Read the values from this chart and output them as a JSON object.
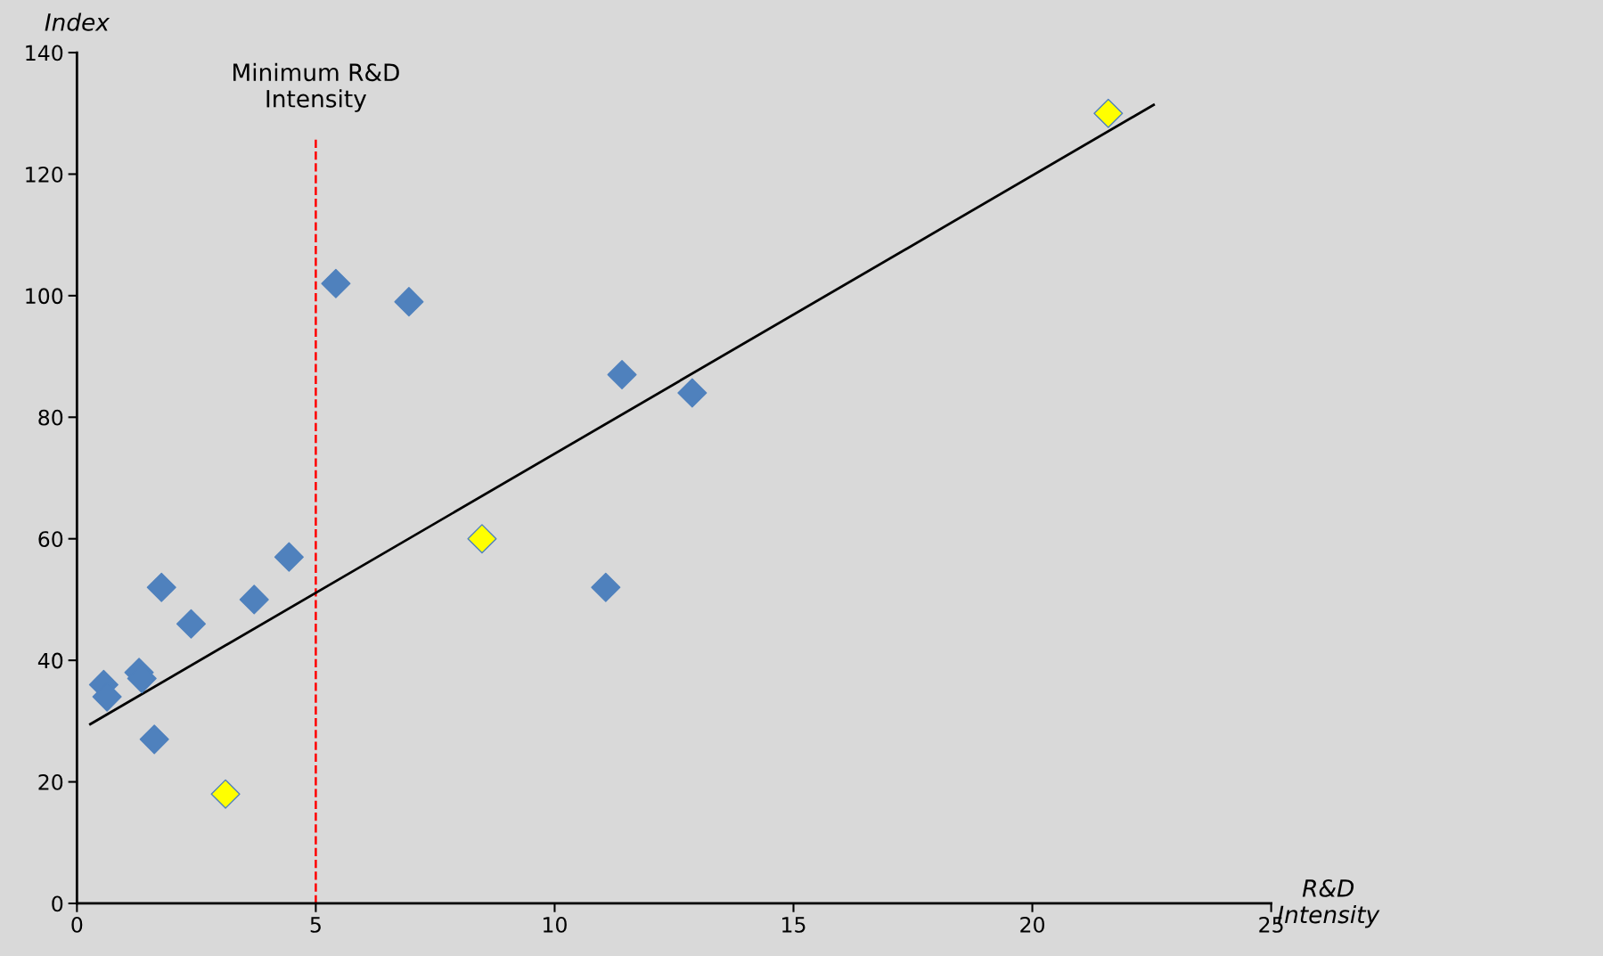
{
  "chart_data": {
    "type": "scatter",
    "xlabel": "R&D\nIntensity",
    "ylabel": "Index",
    "xlim": [
      0,
      25
    ],
    "xticks": [
      0,
      5,
      10,
      15,
      20,
      25
    ],
    "ylim": [
      0,
      140
    ],
    "yticks": [
      0,
      20,
      40,
      60,
      80,
      100,
      120,
      140
    ],
    "grid": false,
    "legend": false,
    "marker": "diamond",
    "series": [
      {
        "color": "#4f81bd",
        "x": [
          0.56,
          0.63,
          1.3,
          1.36,
          1.62,
          1.77,
          2.39,
          3.71,
          4.44,
          5.42,
          6.95,
          11.41,
          12.88,
          11.07
        ],
        "values": [
          36,
          34,
          38,
          37,
          27,
          52,
          46,
          50,
          57,
          102,
          99,
          87,
          84,
          52
        ]
      },
      {
        "color": "#ffff00",
        "x": [
          3.11,
          8.48,
          21.59
        ],
        "values": [
          18,
          60,
          130
        ]
      },
      {
        "type": "line",
        "color": "#000000",
        "marker": "none",
        "line_style": "solid",
        "x": [
          0.28,
          22.54
        ],
        "values": [
          29.5,
          131.4
        ]
      }
    ],
    "ref_lines": [
      {
        "axis": "x",
        "value": 5,
        "label": "Minimum R&D\nIntensity",
        "color": "#ff0000",
        "line_style": "dashed"
      }
    ]
  }
}
